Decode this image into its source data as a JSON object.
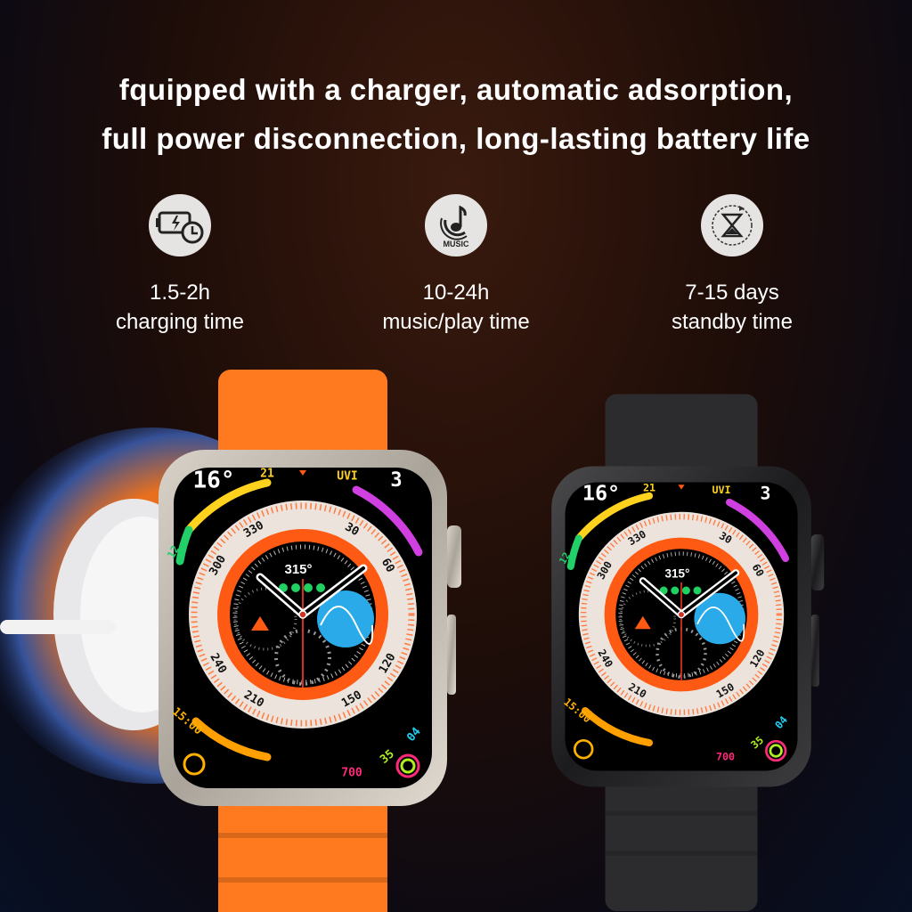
{
  "headline": {
    "line1": "fquipped with a charger, automatic adsorption,",
    "line2": "full power disconnection, long-lasting battery life"
  },
  "features": [
    {
      "icon": "battery-clock-icon",
      "value": "1.5-2h",
      "label": "charging time"
    },
    {
      "icon": "music-note-icon",
      "value": "10-24h",
      "label": "music/play time",
      "icon_text": "MUSIC"
    },
    {
      "icon": "hourglass-icon",
      "value": "7-15 days",
      "label": "standby time"
    }
  ],
  "watch_face": {
    "temp": "16°",
    "temp_high": "21",
    "temp_low": "12",
    "uv_label": "UVI",
    "uv_value": "3",
    "bezel": [
      "300",
      "330",
      "30",
      "60",
      "120",
      "150",
      "210",
      "240"
    ],
    "heading": "315°",
    "time": "15:00",
    "move": "700",
    "exercise": "35",
    "stand": "04"
  },
  "colors": {
    "accent": "#ff5a14",
    "band_left": "#ff7a1e",
    "band_right": "#2c2c2e",
    "bezel": "#ece4dc"
  }
}
